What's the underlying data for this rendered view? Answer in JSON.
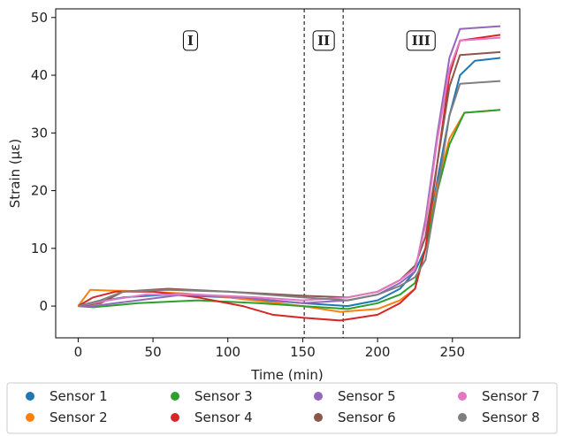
{
  "chart_data": {
    "type": "line",
    "title": "",
    "xlabel": "Time (min)",
    "ylabel": "Strain (με)",
    "xlim": [
      -15,
      295
    ],
    "ylim": [
      -5.5,
      51.5
    ],
    "xticks": [
      0,
      50,
      100,
      150,
      200,
      250
    ],
    "yticks": [
      0,
      10,
      20,
      30,
      40,
      50
    ],
    "grid": false,
    "legend_position": "bottom-outside",
    "phase_boundaries": [
      151,
      177
    ],
    "phases": [
      {
        "label": "I",
        "x": 75,
        "y": 46.0
      },
      {
        "label": "II",
        "x": 164,
        "y": 46.0
      },
      {
        "label": "III",
        "x": 229,
        "y": 46.0
      }
    ],
    "series": [
      {
        "name": "Sensor 1",
        "color": "#1f77b4",
        "x": [
          0,
          8,
          30,
          60,
          100,
          150,
          180,
          200,
          215,
          225,
          232,
          240,
          248,
          255,
          265,
          282
        ],
        "y": [
          0,
          0.5,
          1.5,
          2.0,
          1.5,
          0.5,
          0.0,
          1.0,
          3.0,
          6.0,
          10.0,
          22.0,
          33.0,
          40.0,
          42.5,
          43.0
        ]
      },
      {
        "name": "Sensor 2",
        "color": "#ff7f0e",
        "x": [
          0,
          8,
          20,
          40,
          70,
          100,
          150,
          175,
          200,
          215,
          225,
          232,
          240,
          248,
          258,
          282
        ],
        "y": [
          0,
          2.8,
          2.7,
          2.6,
          2.2,
          1.5,
          0.0,
          -1.0,
          -0.5,
          1.0,
          3.0,
          10.0,
          21.0,
          29.0,
          33.5,
          34.0
        ]
      },
      {
        "name": "Sensor 3",
        "color": "#2ca02c",
        "x": [
          0,
          10,
          40,
          80,
          120,
          150,
          180,
          200,
          215,
          225,
          232,
          240,
          248,
          258,
          282
        ],
        "y": [
          0,
          -0.2,
          0.5,
          1.0,
          0.5,
          0.0,
          -0.5,
          0.5,
          2.0,
          4.0,
          10.0,
          20.0,
          28.0,
          33.5,
          34.0
        ]
      },
      {
        "name": "Sensor 4",
        "color": "#d62728",
        "x": [
          0,
          10,
          25,
          50,
          80,
          110,
          130,
          150,
          175,
          200,
          215,
          225,
          232,
          240,
          248,
          255,
          282
        ],
        "y": [
          0,
          1.5,
          2.5,
          2.5,
          1.5,
          0.0,
          -1.5,
          -2.0,
          -2.5,
          -1.5,
          0.5,
          3.0,
          10.0,
          25.0,
          40.0,
          46.0,
          47.0
        ]
      },
      {
        "name": "Sensor 5",
        "color": "#9467bd",
        "x": [
          0,
          10,
          25,
          40,
          70,
          110,
          150,
          180,
          200,
          215,
          225,
          232,
          240,
          248,
          255,
          282
        ],
        "y": [
          0,
          0.0,
          0.5,
          1.0,
          2.0,
          1.5,
          0.5,
          1.0,
          2.0,
          4.0,
          6.0,
          15.0,
          30.0,
          43.0,
          48.0,
          48.5
        ]
      },
      {
        "name": "Sensor 6",
        "color": "#8c564b",
        "x": [
          0,
          15,
          30,
          60,
          100,
          150,
          180,
          200,
          215,
          225,
          232,
          240,
          248,
          255,
          282
        ],
        "y": [
          0,
          0.5,
          2.5,
          3.0,
          2.5,
          1.8,
          1.5,
          2.5,
          4.5,
          7.0,
          12.0,
          25.0,
          38.0,
          43.5,
          44.0
        ]
      },
      {
        "name": "Sensor 7",
        "color": "#e377c2",
        "x": [
          0,
          10,
          20,
          45,
          80,
          120,
          150,
          180,
          200,
          215,
          225,
          232,
          240,
          248,
          255,
          282
        ],
        "y": [
          0,
          0.5,
          1.0,
          2.0,
          2.0,
          1.5,
          1.0,
          1.5,
          2.5,
          4.5,
          6.5,
          14.0,
          29.0,
          41.0,
          46.0,
          46.5
        ]
      },
      {
        "name": "Sensor 8",
        "color": "#7f7f7f",
        "x": [
          0,
          15,
          30,
          60,
          100,
          150,
          180,
          200,
          215,
          225,
          232,
          240,
          248,
          255,
          282
        ],
        "y": [
          0,
          1.0,
          2.5,
          2.8,
          2.5,
          1.5,
          1.0,
          2.0,
          3.5,
          5.0,
          8.0,
          20.0,
          33.0,
          38.5,
          39.0
        ]
      }
    ]
  }
}
